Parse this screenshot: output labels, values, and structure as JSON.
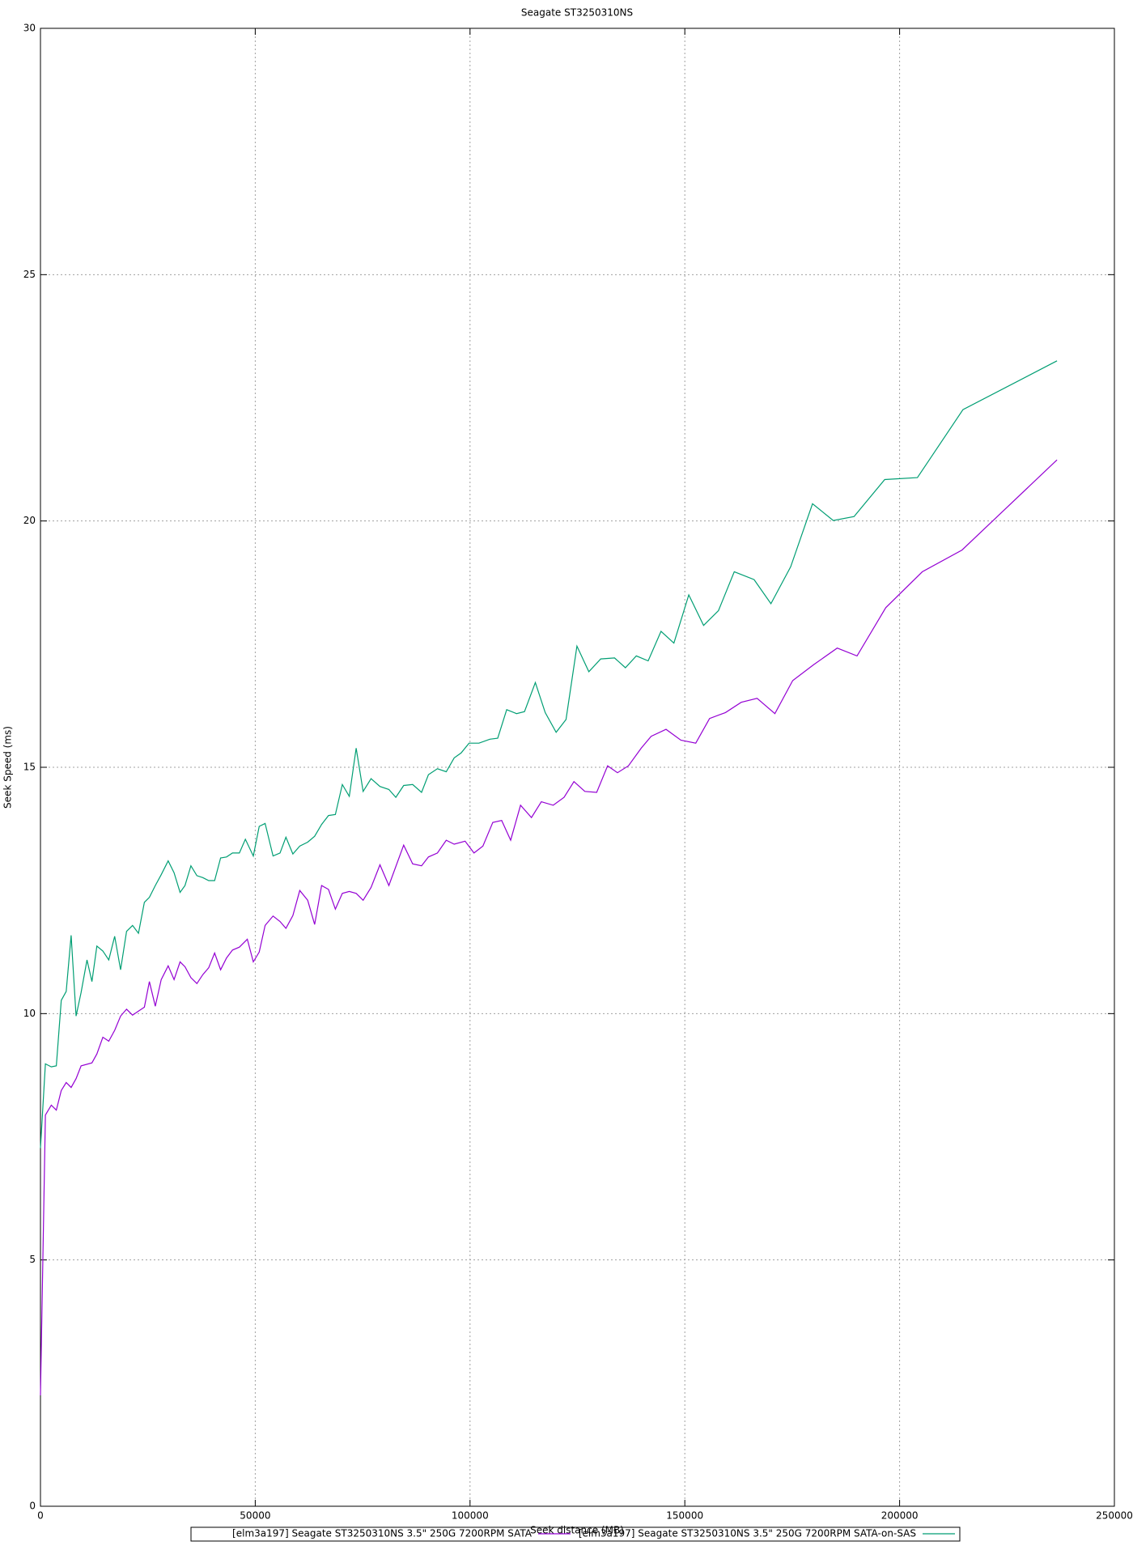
{
  "chart_data": {
    "type": "line",
    "title": "Seagate ST3250310NS",
    "x_label": "Seek distance (MB)",
    "y_label": "Seek Speed (ms)",
    "xlim": [
      0,
      250000
    ],
    "xticks": [
      0,
      50000,
      100000,
      150000,
      200000,
      250000
    ],
    "ylim": [
      0,
      30
    ],
    "yticks": [
      0,
      5,
      10,
      15,
      20,
      25,
      30
    ],
    "grid": true,
    "legend": "bottom",
    "series": [
      {
        "name": "[elm3a197] Seagate ST3250310NS 3.5\" 250G 7200RPM SATA",
        "color": "#9400d3",
        "x": [
          0,
          1150,
          2530,
          3690,
          4840,
          5990,
          7140,
          8290,
          9450,
          11980,
          13130,
          14520,
          15900,
          17280,
          18660,
          20050,
          21430,
          22810,
          24190,
          25350,
          26730,
          28110,
          29720,
          31110,
          32490,
          33640,
          35020,
          36410,
          37790,
          39170,
          40550,
          41940,
          43320,
          44700,
          46310,
          48160,
          49540,
          50920,
          52300,
          54150,
          55760,
          57140,
          58760,
          60370,
          62210,
          63820,
          65440,
          67050,
          68660,
          70280,
          71890,
          73500,
          75120,
          76960,
          79030,
          81100,
          84560,
          86640,
          88710,
          90320,
          92400,
          94470,
          96310,
          98850,
          100920,
          102990,
          105300,
          107370,
          109450,
          111750,
          114290,
          116590,
          119360,
          121890,
          124190,
          126730,
          129490,
          132030,
          134330,
          136870,
          139860,
          142170,
          145620,
          149080,
          152540,
          155760,
          159450,
          163130,
          166820,
          170970,
          175120,
          179950,
          185480,
          190090,
          196770,
          205300,
          214520,
          236640
        ],
        "values": [
          2.25,
          7.94,
          8.14,
          8.04,
          8.44,
          8.6,
          8.5,
          8.68,
          8.94,
          9.0,
          9.18,
          9.52,
          9.44,
          9.66,
          9.95,
          10.09,
          9.97,
          10.05,
          10.13,
          10.65,
          10.15,
          10.69,
          10.97,
          10.69,
          11.05,
          10.95,
          10.73,
          10.61,
          10.79,
          10.93,
          11.23,
          10.89,
          11.13,
          11.29,
          11.35,
          11.51,
          11.05,
          11.25,
          11.79,
          11.98,
          11.87,
          11.73,
          11.99,
          12.5,
          12.3,
          11.81,
          12.6,
          12.52,
          12.12,
          12.44,
          12.48,
          12.44,
          12.3,
          12.56,
          13.02,
          12.6,
          13.42,
          13.04,
          13.0,
          13.18,
          13.26,
          13.52,
          13.44,
          13.5,
          13.26,
          13.4,
          13.88,
          13.92,
          13.52,
          14.23,
          13.98,
          14.3,
          14.23,
          14.39,
          14.71,
          14.51,
          14.49,
          15.03,
          14.89,
          15.03,
          15.39,
          15.63,
          15.77,
          15.55,
          15.49,
          15.99,
          16.11,
          16.32,
          16.4,
          16.09,
          16.76,
          17.08,
          17.42,
          17.26,
          18.24,
          18.97,
          19.41,
          21.24
        ]
      },
      {
        "name": "[elm3a197] Seagate ST3250310NS 3.5\" 250G 7200RPM SATA-on-SAS",
        "color": "#009e73",
        "x": [
          0,
          1150,
          2530,
          3690,
          4840,
          5990,
          7140,
          8290,
          9450,
          10830,
          11980,
          13130,
          14520,
          15900,
          17280,
          18660,
          20050,
          21430,
          22810,
          24190,
          25350,
          26730,
          28110,
          29720,
          31110,
          32490,
          33640,
          35020,
          36410,
          37790,
          39170,
          40550,
          41940,
          43320,
          44700,
          46310,
          47700,
          49540,
          50920,
          52300,
          54150,
          55760,
          57140,
          58760,
          60370,
          62210,
          63820,
          65440,
          67050,
          68660,
          70280,
          71890,
          73500,
          75120,
          76960,
          79030,
          81100,
          82720,
          84560,
          86640,
          88710,
          90320,
          92400,
          94470,
          96310,
          97930,
          99770,
          102070,
          104610,
          106450,
          108530,
          110830,
          112670,
          115210,
          117510,
          120050,
          122350,
          124890,
          127650,
          130420,
          133640,
          136180,
          138710,
          141470,
          144470,
          147460,
          150920,
          154380,
          157830,
          161520,
          166130,
          170050,
          174650,
          179720,
          184560,
          189400,
          196540,
          204150,
          214750,
          236640
        ],
        "values": [
          7.27,
          8.98,
          8.92,
          8.94,
          10.27,
          10.45,
          11.59,
          9.95,
          10.43,
          11.09,
          10.65,
          11.37,
          11.27,
          11.09,
          11.57,
          10.89,
          11.67,
          11.79,
          11.63,
          12.26,
          12.36,
          12.6,
          12.82,
          13.1,
          12.86,
          12.46,
          12.6,
          13.0,
          12.8,
          12.76,
          12.7,
          12.7,
          13.16,
          13.18,
          13.26,
          13.26,
          13.54,
          13.2,
          13.8,
          13.86,
          13.2,
          13.26,
          13.58,
          13.24,
          13.4,
          13.48,
          13.6,
          13.84,
          14.02,
          14.04,
          14.65,
          14.41,
          15.39,
          14.51,
          14.77,
          14.61,
          14.55,
          14.39,
          14.63,
          14.65,
          14.49,
          14.85,
          14.97,
          14.91,
          15.19,
          15.29,
          15.49,
          15.49,
          15.57,
          15.59,
          16.17,
          16.09,
          16.13,
          16.72,
          16.11,
          15.71,
          15.97,
          17.46,
          16.94,
          17.2,
          17.22,
          17.02,
          17.26,
          17.16,
          17.76,
          17.52,
          18.5,
          17.88,
          18.18,
          18.97,
          18.81,
          18.32,
          19.07,
          20.35,
          20.01,
          20.09,
          20.84,
          20.88,
          22.26,
          23.25
        ]
      }
    ]
  }
}
